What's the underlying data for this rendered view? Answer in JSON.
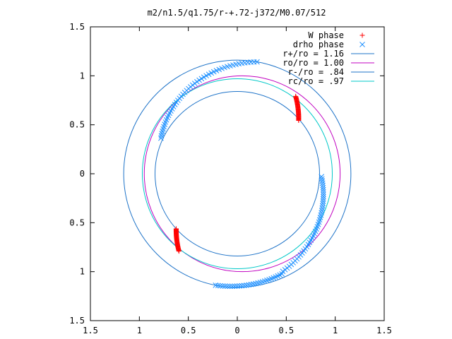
{
  "chart_data": {
    "type": "scatter",
    "title": "m2/n1.5/q1.75/r-+.72-j372/M0.07/512",
    "xlabel": "",
    "ylabel": "",
    "xlim": [
      -1.5,
      1.5
    ],
    "ylim": [
      -1.5,
      1.5
    ],
    "grid": false,
    "legend_position": "top-right",
    "x_ticks": [
      {
        "value": -1.5,
        "label": "1.5"
      },
      {
        "value": -1.0,
        "label": "1"
      },
      {
        "value": -0.5,
        "label": "0.5"
      },
      {
        "value": 0.0,
        "label": "0"
      },
      {
        "value": 0.5,
        "label": "0.5"
      },
      {
        "value": 1.0,
        "label": "1"
      },
      {
        "value": 1.5,
        "label": "1.5"
      }
    ],
    "y_ticks": [
      {
        "value": 1.5,
        "label": "1.5"
      },
      {
        "value": 1.0,
        "label": "1"
      },
      {
        "value": 0.5,
        "label": "0.5"
      },
      {
        "value": 0.0,
        "label": "0"
      },
      {
        "value": -0.5,
        "label": "0.5"
      },
      {
        "value": -1.0,
        "label": "1"
      },
      {
        "value": -1.5,
        "label": "1.5"
      }
    ],
    "series": [
      {
        "name": "W phase",
        "marker": "plus",
        "color": "#ff0000",
        "arcs": [
          {
            "r_start": 0.99,
            "r_end": 0.83,
            "theta_start_deg": 53,
            "theta_end_deg": 41,
            "count": 40
          },
          {
            "r_start": 0.99,
            "r_end": 0.84,
            "theta_start_deg": 233,
            "theta_end_deg": 222,
            "count": 40
          }
        ]
      },
      {
        "name": "drho phase",
        "marker": "x",
        "color": "#1e90ff",
        "arcs": [
          {
            "r_start": 1.16,
            "r_end": 0.86,
            "theta_start_deg": 80,
            "theta_end_deg": 155,
            "count": 50
          },
          {
            "r_start": 0.86,
            "r_end": 1.1,
            "theta_start_deg": 358,
            "theta_end_deg": 295,
            "count": 45
          },
          {
            "r_start": 1.12,
            "r_end": 1.16,
            "theta_start_deg": 294,
            "theta_end_deg": 259,
            "count": 30
          }
        ]
      },
      {
        "name": "r+/ro = 1.16",
        "type": "circle",
        "radius": 1.16,
        "color": "#1e73c8"
      },
      {
        "name": "ro/ro = 1.00",
        "type": "circle",
        "radius": 1.0,
        "center_x": 0.05,
        "color": "#c000c0"
      },
      {
        "name": "r-/ro = .84",
        "type": "circle",
        "radius": 0.84,
        "color": "#1e73c8"
      },
      {
        "name": "rc/ro = .97",
        "type": "circle",
        "radius": 0.97,
        "color": "#00c8c8"
      }
    ]
  }
}
